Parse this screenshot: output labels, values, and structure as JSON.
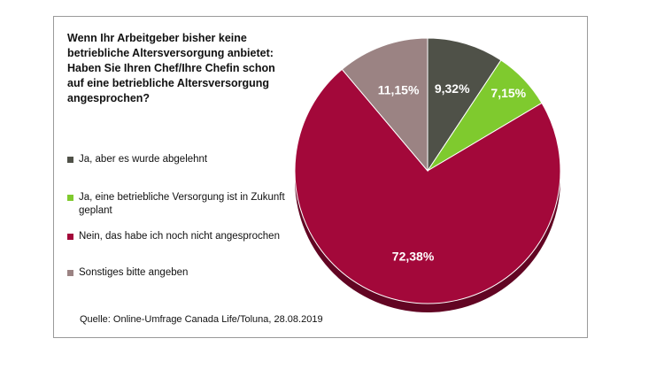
{
  "chart_data": {
    "type": "pie",
    "title": "Wenn Ihr Arbeitgeber bisher keine betriebliche Altersversorgung anbietet: Haben Sie Ihren Chef/Ihre Chefin schon auf eine betriebliche Altersversorgung angesprochen?",
    "slices": [
      {
        "label": "Ja, aber es wurde abgelehnt",
        "value": 9.32,
        "value_label": "9,32%",
        "color": "#4f5148"
      },
      {
        "label": "Ja, eine betriebliche Versorgung ist in Zukunft geplant",
        "value": 7.15,
        "value_label": "7,15%",
        "color": "#7fca2e"
      },
      {
        "label": "Nein, das habe ich noch nicht angesprochen",
        "value": 72.38,
        "value_label": "72,38%",
        "color": "#a3083a"
      },
      {
        "label": "Sonstiges bitte angeben",
        "value": 11.15,
        "value_label": "11,15%",
        "color": "#9b8383"
      }
    ],
    "start": "12 o'clock",
    "direction": "clockwise",
    "legend_position": "left"
  },
  "source": "Quelle: Online-Umfrage Canada Life/Toluna, 28.08.2019"
}
